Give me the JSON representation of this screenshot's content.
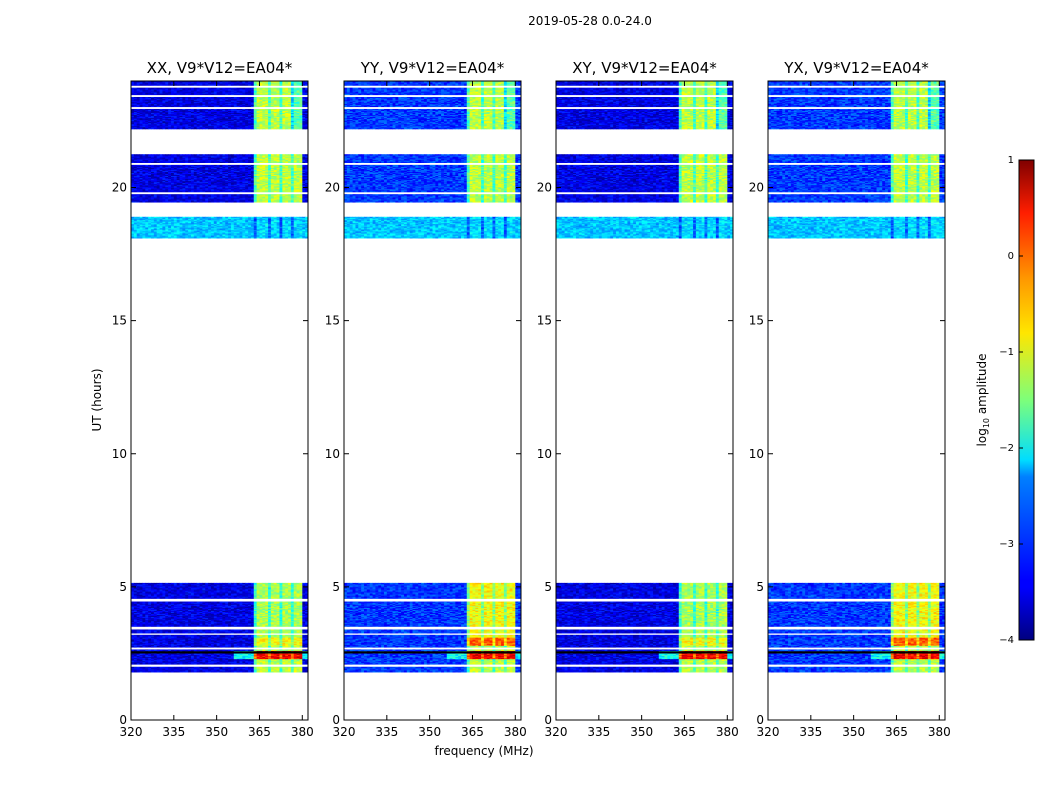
{
  "suptitle": "2019-05-28 0.0-24.0",
  "chart_data": {
    "type": "heatmap",
    "shared": {
      "xlabel": "frequency (MHz)",
      "ylabel": "UT (hours)",
      "xlim": [
        320,
        382
      ],
      "ylim": [
        0,
        24
      ],
      "xticks": [
        320,
        335,
        350,
        365,
        380
      ],
      "yticks": [
        0,
        5,
        10,
        15,
        20
      ],
      "data_bands_hours": [
        [
          1.8,
          5.15
        ],
        [
          18.1,
          18.9
        ],
        [
          19.45,
          21.25
        ],
        [
          22.2,
          24.0
        ]
      ],
      "rfi_freq_range_mhz": [
        363,
        380
      ]
    },
    "panels": [
      {
        "title": "XX, V9*V12=EA04*"
      },
      {
        "title": "YY, V9*V12=EA04*"
      },
      {
        "title": "XY, V9*V12=EA04*"
      },
      {
        "title": "YX, V9*V12=EA04*"
      }
    ],
    "colorbar": {
      "label": "log10 amplitude",
      "label_main": "log",
      "label_sub": "10",
      "label_rest": " amplitude",
      "vmin": -4,
      "vmax": 1,
      "ticks": [
        "1",
        "0",
        "−1",
        "−2",
        "−3",
        "−4"
      ],
      "colormap": "jet"
    }
  }
}
